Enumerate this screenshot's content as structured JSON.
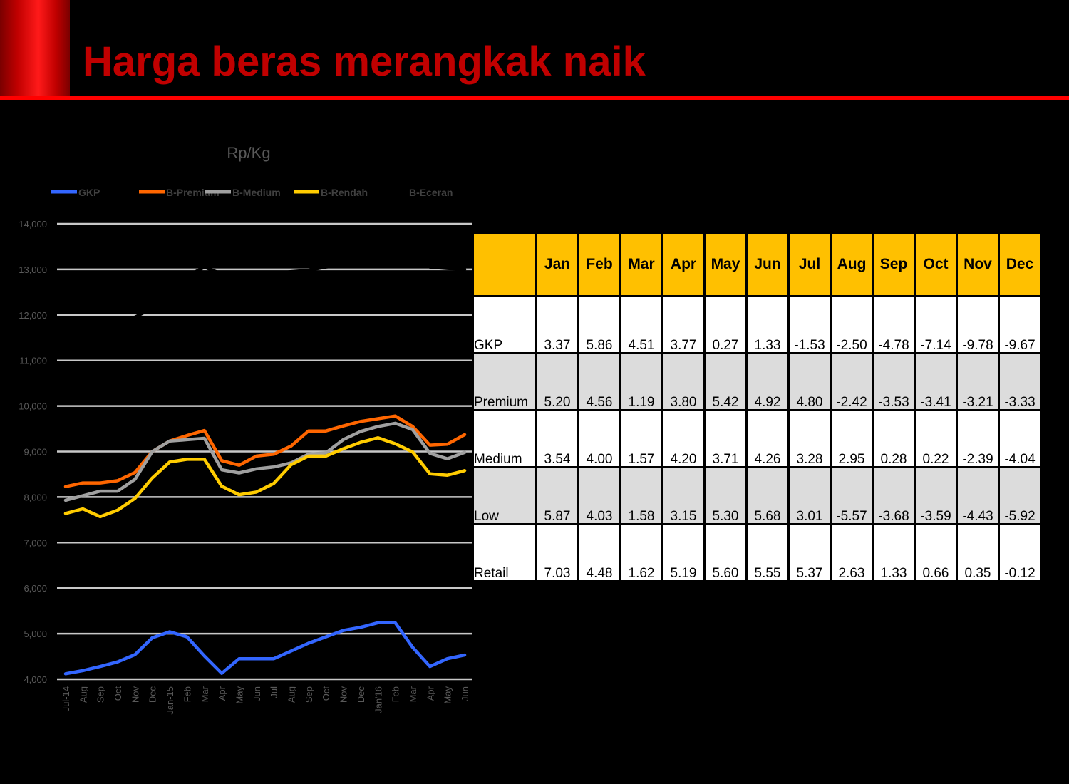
{
  "slide": {
    "title": "Harga beras merangkak naik",
    "accent_red": "#c00000",
    "rule_red": "#ff0000"
  },
  "chart_data": {
    "type": "line",
    "title": "Rp/Kg",
    "xlabel": "",
    "ylabel": "",
    "ylim": [
      4000,
      14000
    ],
    "yticks": [
      "4,000",
      "5,000",
      "6,000",
      "7,000",
      "8,000",
      "9,000",
      "10,000",
      "11,000",
      "12,000",
      "13,000",
      "14,000"
    ],
    "grid": true,
    "legend_position": "top",
    "categories": [
      "Jul-14",
      "Aug",
      "Sep",
      "Oct",
      "Nov",
      "Dec",
      "Jan-15",
      "Feb",
      "Mar",
      "Apr",
      "May",
      "Jun",
      "Jul",
      "Aug",
      "Sep",
      "Oct",
      "Nov",
      "Dec",
      "Jan'16",
      "Feb",
      "Mar",
      "Apr",
      "May",
      "Jun"
    ],
    "series": [
      {
        "name": "GKP",
        "color": "#3366ff",
        "values": [
          4120,
          4190,
          4280,
          4380,
          4540,
          4910,
          5040,
          4930,
          4510,
          4130,
          4450,
          4450,
          4450,
          4620,
          4790,
          4930,
          5070,
          5140,
          5240,
          5240,
          4700,
          4280,
          4450,
          4530
        ]
      },
      {
        "name": "B-Premium",
        "color": "#ff6600",
        "values": [
          8230,
          8310,
          8310,
          8360,
          8540,
          9000,
          9230,
          9350,
          9460,
          8800,
          8700,
          8900,
          8940,
          9120,
          9450,
          9450,
          9560,
          9660,
          9720,
          9780,
          9550,
          9140,
          9160,
          9370
        ]
      },
      {
        "name": "B-Medium",
        "color": "#a0a0a0",
        "values": [
          7930,
          8030,
          8130,
          8130,
          8390,
          9000,
          9230,
          9260,
          9290,
          8600,
          8530,
          8620,
          8660,
          8750,
          8940,
          8970,
          9260,
          9440,
          9550,
          9620,
          9480,
          8960,
          8840,
          8980
        ]
      },
      {
        "name": "B-Rendah",
        "color": "#ffcc00",
        "values": [
          7640,
          7740,
          7570,
          7710,
          7970,
          8420,
          8770,
          8830,
          8830,
          8240,
          8050,
          8110,
          8300,
          8710,
          8900,
          8900,
          9060,
          9200,
          9300,
          9170,
          8990,
          8510,
          8480,
          8580
        ]
      },
      {
        "name": "B-Eceran",
        "color": "#000000",
        "values": [
          11200,
          11500,
          11700,
          11800,
          11950,
          12150,
          12600,
          12850,
          13050,
          12900,
          12900,
          12900,
          12900,
          12950,
          12980,
          13050,
          13100,
          13150,
          13200,
          13250,
          13200,
          13050,
          13020,
          13000
        ]
      }
    ]
  },
  "table": {
    "headers": [
      "",
      "Jan",
      "Feb",
      "Mar",
      "Apr",
      "May",
      "Jun",
      "Jul",
      "Aug",
      "Sep",
      "Oct",
      "Nov",
      "Dec"
    ],
    "header_color": "#ffc000",
    "rows": [
      {
        "label": "GKP",
        "values": [
          "3.37",
          "5.86",
          "4.51",
          "3.77",
          "0.27",
          "1.33",
          "-1.53",
          "-2.50",
          "-4.78",
          "-7.14",
          "-9.78",
          "-9.67"
        ]
      },
      {
        "label": "Premium",
        "values": [
          "5.20",
          "4.56",
          "1.19",
          "3.80",
          "5.42",
          "4.92",
          "4.80",
          "-2.42",
          "-3.53",
          "-3.41",
          "-3.21",
          "-3.33"
        ]
      },
      {
        "label": "Medium",
        "values": [
          "3.54",
          "4.00",
          "1.57",
          "4.20",
          "3.71",
          "4.26",
          "3.28",
          "2.95",
          "0.28",
          "0.22",
          "-2.39",
          "-4.04"
        ]
      },
      {
        "label": "Low",
        "values": [
          "5.87",
          "4.03",
          "1.58",
          "3.15",
          "5.30",
          "5.68",
          "3.01",
          "-5.57",
          "-3.68",
          "-3.59",
          "-4.43",
          "-5.92"
        ]
      },
      {
        "label": "Retail",
        "values": [
          "7.03",
          "4.48",
          "1.62",
          "5.19",
          "5.60",
          "5.55",
          "5.37",
          "2.63",
          "1.33",
          "0.66",
          "0.35",
          "-0.12"
        ]
      }
    ]
  }
}
